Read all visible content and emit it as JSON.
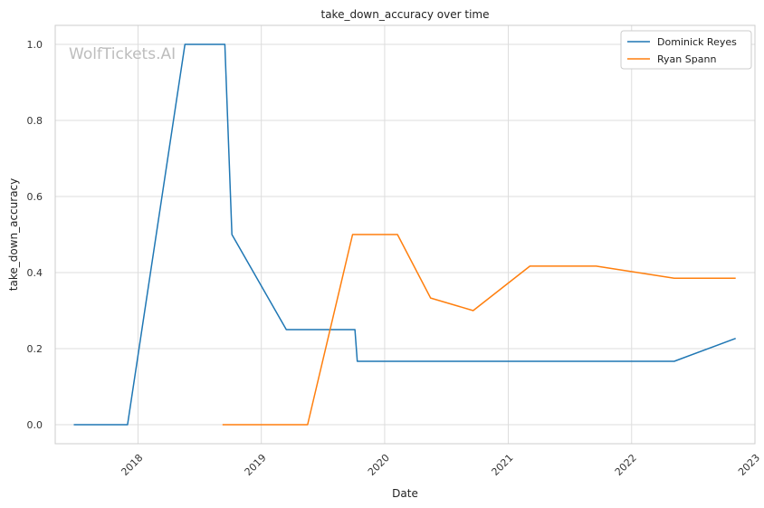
{
  "chart_data": {
    "type": "line",
    "title": "take_down_accuracy over time",
    "xlabel": "Date",
    "ylabel": "take_down_accuracy",
    "watermark": "WolfTickets.AI",
    "x_ticks": [
      "2018",
      "2019",
      "2020",
      "2021",
      "2022",
      "2023"
    ],
    "y_ticks": [
      "0.0",
      "0.2",
      "0.4",
      "0.6",
      "0.8",
      "1.0"
    ],
    "xlim": [
      "2017-05-01",
      "2023-01-01"
    ],
    "ylim": [
      -0.05,
      1.05
    ],
    "grid": true,
    "legend_position": "top-right",
    "series": [
      {
        "name": "Dominick Reyes",
        "color": "#1f77b4",
        "points": [
          [
            "2017-06-25",
            0.0
          ],
          [
            "2017-12-01",
            0.0
          ],
          [
            "2018-05-20",
            1.0
          ],
          [
            "2018-09-15",
            1.0
          ],
          [
            "2018-10-06",
            0.5
          ],
          [
            "2019-03-16",
            0.25
          ],
          [
            "2019-10-05",
            0.25
          ],
          [
            "2019-10-12",
            0.1667
          ],
          [
            "2022-05-07",
            0.1667
          ],
          [
            "2022-11-05",
            0.227
          ]
        ]
      },
      {
        "name": "Ryan Spann",
        "color": "#ff7f0e",
        "points": [
          [
            "2018-09-08",
            0.0
          ],
          [
            "2019-05-18",
            0.0
          ],
          [
            "2019-09-28",
            0.5
          ],
          [
            "2020-02-08",
            0.5
          ],
          [
            "2020-05-16",
            0.333
          ],
          [
            "2020-09-19",
            0.3
          ],
          [
            "2021-03-06",
            0.417
          ],
          [
            "2021-09-18",
            0.417
          ],
          [
            "2022-05-07",
            0.385
          ],
          [
            "2022-11-05",
            0.385
          ]
        ]
      }
    ]
  }
}
